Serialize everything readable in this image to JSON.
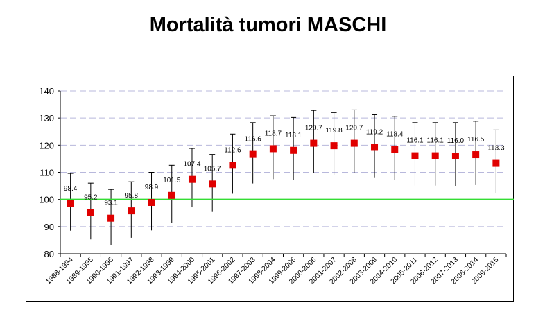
{
  "chart_data": {
    "type": "scatter",
    "title": "Mortalità tumori MASCHI",
    "xlabel": "",
    "ylabel": "",
    "ylim": [
      80,
      140
    ],
    "yticks": [
      80,
      90,
      100,
      110,
      120,
      130,
      140
    ],
    "grid": true,
    "legend": "none",
    "reference_line": {
      "y": 100
    },
    "categories": [
      "1988-1994",
      "1989-1995",
      "1990-1996",
      "1991-1997",
      "1992-1998",
      "1993-1999",
      "1994-2000",
      "1995-2001",
      "1996-2002",
      "1997-2003",
      "1998-2004",
      "1999-2005",
      "2000-2006",
      "2001-2007",
      "2002-2008",
      "2003-2009",
      "2004-2010",
      "2005-2011",
      "2006-2012",
      "2007-2013",
      "2008-2014",
      "2009-2015"
    ],
    "values": [
      98.4,
      95.2,
      93.1,
      95.8,
      98.9,
      101.5,
      107.4,
      105.7,
      112.6,
      116.6,
      118.7,
      118.1,
      120.7,
      119.8,
      120.7,
      119.2,
      118.4,
      116.1,
      116.1,
      116.0,
      116.5,
      113.3
    ],
    "value_labels": [
      "98.4",
      "95.2",
      "93.1",
      "95.8",
      "98.9",
      "101.5",
      "107.4",
      "105.7",
      "112.6",
      "116.6",
      "118.7",
      "118.1",
      "120.7",
      "119.8",
      "120.7",
      "119.2",
      "118.4",
      "116.1",
      "116.1",
      "116.0",
      "116.5",
      "113.3"
    ],
    "ci_lower": [
      88.5,
      85.3,
      83.2,
      85.9,
      88.6,
      91.3,
      97.1,
      95.4,
      102.1,
      105.9,
      107.5,
      107.1,
      109.8,
      108.9,
      109.7,
      107.9,
      107.1,
      105.1,
      105.1,
      104.9,
      105.3,
      102.2
    ],
    "ci_upper": [
      109.6,
      106.0,
      103.7,
      106.5,
      110.0,
      112.6,
      118.8,
      116.6,
      124.1,
      128.3,
      130.8,
      130.2,
      132.8,
      132.0,
      133.0,
      131.2,
      130.6,
      128.3,
      128.3,
      128.3,
      128.8,
      125.6
    ],
    "colors": {
      "marker": "#e00000",
      "reference_line": "#33dd33",
      "grid": "#b8b8dc",
      "error_bar": "#000000"
    }
  }
}
